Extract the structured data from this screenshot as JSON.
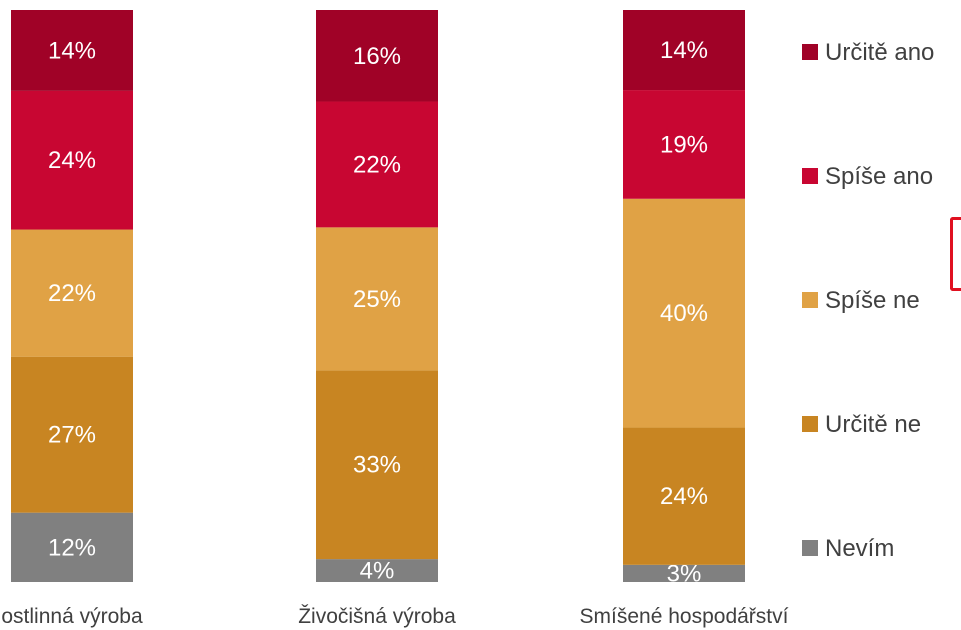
{
  "chart_data": {
    "type": "bar",
    "stacked": true,
    "orientation": "vertical",
    "categories": [
      "ostlinná výroba",
      "Živočišná výroba",
      "Smíšené hospodářství"
    ],
    "series": [
      {
        "name": "Nevím",
        "color": "#808080",
        "values": [
          12,
          4,
          3
        ],
        "labels": [
          "12%",
          "4%",
          "3%"
        ]
      },
      {
        "name": "Určitě ne",
        "color": "#C88522",
        "values": [
          27,
          33,
          24
        ],
        "labels": [
          "27%",
          "33%",
          "24%"
        ]
      },
      {
        "name": "Spíše ne",
        "color": "#E0A245",
        "values": [
          22,
          25,
          40
        ],
        "labels": [
          "22%",
          "25%",
          "40%"
        ]
      },
      {
        "name": "Spíše ano",
        "color": "#C80632",
        "values": [
          24,
          22,
          19
        ],
        "labels": [
          "24%",
          "22%",
          "19%"
        ]
      },
      {
        "name": "Určitě ano",
        "color": "#A00227",
        "values": [
          14,
          16,
          14
        ],
        "labels": [
          "14%",
          "16%",
          "14%"
        ]
      }
    ],
    "legend_order": [
      "Určitě ano",
      "Spíše ano",
      "Spíše ne",
      "Určitě ne",
      "Nevím"
    ],
    "legend_position": "right",
    "grid": false,
    "ylim": [
      0,
      100
    ],
    "title": "",
    "xlabel": "",
    "ylabel": ""
  }
}
